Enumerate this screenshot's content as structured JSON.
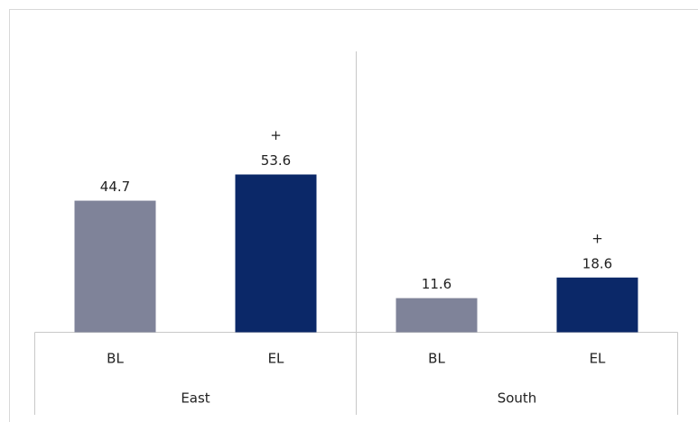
{
  "chart_data": {
    "type": "bar",
    "groups": [
      {
        "name": "East",
        "categories": [
          "BL",
          "EL"
        ],
        "values": [
          44.7,
          53.6
        ],
        "markers": [
          null,
          "+"
        ]
      },
      {
        "name": "South",
        "categories": [
          "BL",
          "EL"
        ],
        "values": [
          11.6,
          18.6
        ],
        "markers": [
          null,
          "+"
        ]
      }
    ],
    "colors": [
      "#7f8399",
      "#0b2868"
    ]
  }
}
